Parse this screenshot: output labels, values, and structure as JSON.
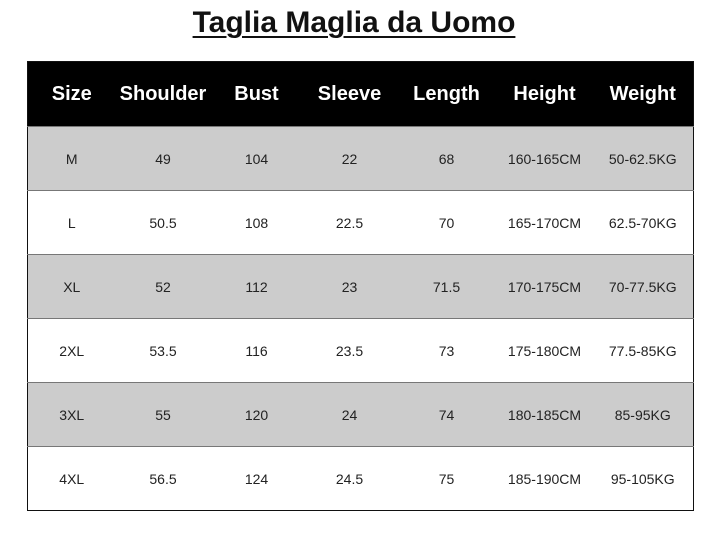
{
  "title": "Taglia Maglia da Uomo",
  "headers": [
    "Size",
    "Shoulder",
    "Bust",
    "Sleeve",
    "Length",
    "Height",
    "Weight"
  ],
  "rows": [
    [
      "M",
      "49",
      "104",
      "22",
      "68",
      "160-165CM",
      "50-62.5KG"
    ],
    [
      "L",
      "50.5",
      "108",
      "22.5",
      "70",
      "165-170CM",
      "62.5-70KG"
    ],
    [
      "XL",
      "52",
      "112",
      "23",
      "71.5",
      "170-175CM",
      "70-77.5KG"
    ],
    [
      "2XL",
      "53.5",
      "116",
      "23.5",
      "73",
      "175-180CM",
      "77.5-85KG"
    ],
    [
      "3XL",
      "55",
      "120",
      "24",
      "74",
      "180-185CM",
      "85-95KG"
    ],
    [
      "4XL",
      "56.5",
      "124",
      "24.5",
      "75",
      "185-190CM",
      "95-105KG"
    ]
  ]
}
